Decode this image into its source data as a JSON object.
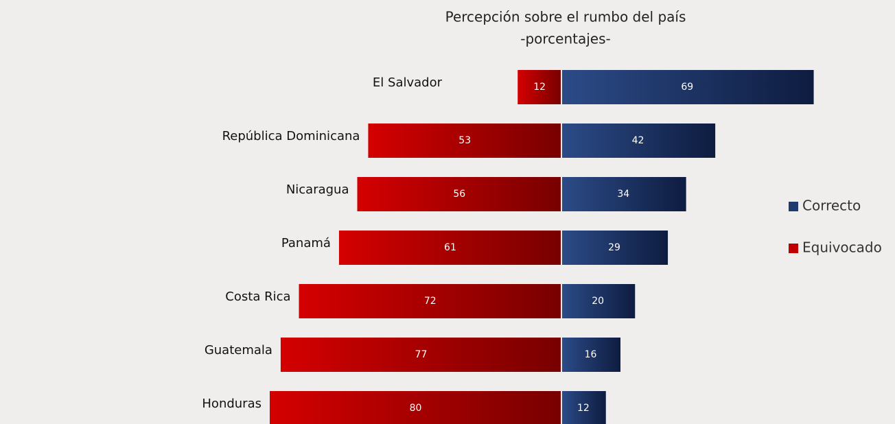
{
  "chart_data": {
    "type": "diverging-bar",
    "title": "Percepción sobre el rumbo del país",
    "subtitle": "-porcentajes-",
    "categories": [
      "El Salvador",
      "República Dominicana",
      "Nicaragua",
      "Panamá",
      "Costa Rica",
      "Guatemala",
      "Honduras"
    ],
    "series": [
      {
        "name": "Correcto",
        "color": "#1f3a6e",
        "values": [
          69,
          42,
          34,
          29,
          20,
          16,
          12
        ]
      },
      {
        "name": "Equivocado",
        "color": "#c00000",
        "values": [
          12,
          53,
          56,
          61,
          72,
          77,
          80
        ]
      }
    ],
    "legend": "right"
  }
}
